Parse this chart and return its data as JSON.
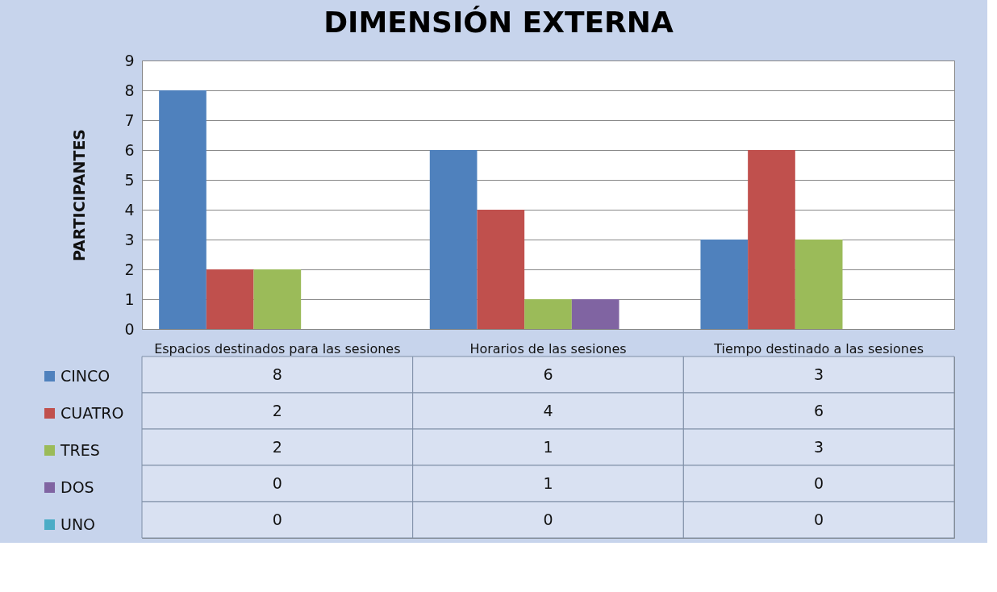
{
  "chart_data": {
    "type": "bar",
    "title": "DIMENSIÓN EXTERNA",
    "ylabel": "PARTICIPANTES",
    "categories": [
      "Espacios destinados para las sesiones",
      "Horarios de las sesiones",
      "Tiempo destinado a las sesiones"
    ],
    "series": [
      {
        "name": "CINCO",
        "color": "#4f81bd",
        "values": [
          8,
          6,
          3
        ]
      },
      {
        "name": "CUATRO",
        "color": "#c0504d",
        "values": [
          2,
          4,
          6
        ]
      },
      {
        "name": "TRES",
        "color": "#9bbb59",
        "values": [
          2,
          1,
          3
        ]
      },
      {
        "name": "DOS",
        "color": "#8064a2",
        "values": [
          0,
          1,
          0
        ]
      },
      {
        "name": "UNO",
        "color": "#4bacc6",
        "values": [
          0,
          0,
          0
        ]
      }
    ],
    "ylim": [
      0,
      9
    ],
    "yticks": [
      0,
      1,
      2,
      3,
      4,
      5,
      6,
      7,
      8,
      9
    ],
    "grid": "y",
    "legend": "bottom left",
    "data_labels": true
  }
}
